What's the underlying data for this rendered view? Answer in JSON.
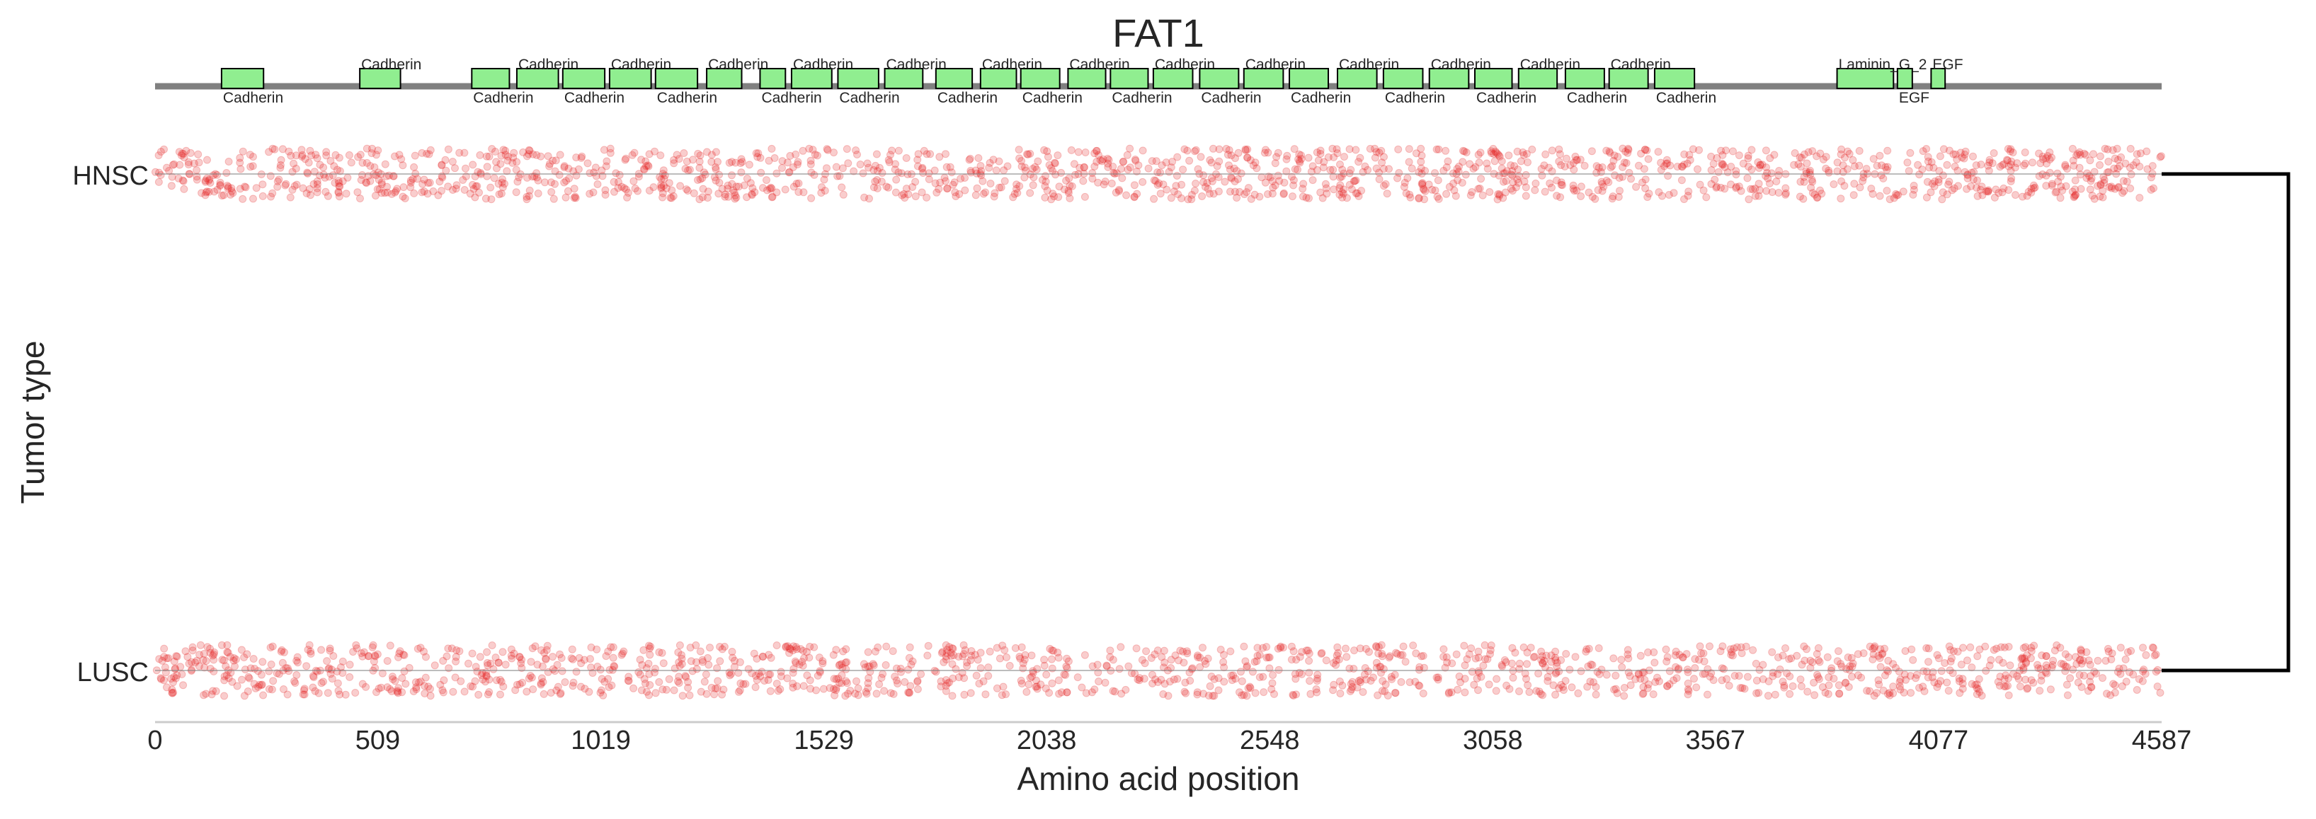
{
  "chart_data": {
    "type": "scatter",
    "title": "FAT1",
    "xlabel": "Amino acid position",
    "ylabel": "Tumor type",
    "xlim": [
      0,
      4587
    ],
    "xticks": [
      "0",
      "509",
      "1019",
      "1529",
      "2038",
      "2548",
      "3058",
      "3567",
      "4077",
      "4587"
    ],
    "categories": [
      "HNSC",
      "LUSC"
    ],
    "point_color": "#e31a1c",
    "domain_color": "#90ee90",
    "protein_line_color": "#808080",
    "domains": [
      {
        "name": "Cadherin",
        "start": 152,
        "end": 248,
        "label_pos": "below"
      },
      {
        "name": "Cadherin",
        "start": 468,
        "end": 561,
        "label_pos": "above"
      },
      {
        "name": "Cadherin",
        "start": 724,
        "end": 810,
        "label_pos": "below"
      },
      {
        "name": "Cadherin",
        "start": 827,
        "end": 922,
        "label_pos": "above"
      },
      {
        "name": "Cadherin",
        "start": 932,
        "end": 1028,
        "label_pos": "below"
      },
      {
        "name": "Cadherin",
        "start": 1039,
        "end": 1134,
        "label_pos": "above"
      },
      {
        "name": "Cadherin",
        "start": 1144,
        "end": 1240,
        "label_pos": "below"
      },
      {
        "name": "Cadherin",
        "start": 1261,
        "end": 1341,
        "label_pos": "above"
      },
      {
        "name": "Cadherin",
        "start": 1383,
        "end": 1441,
        "label_pos": "below"
      },
      {
        "name": "Cadherin",
        "start": 1455,
        "end": 1547,
        "label_pos": "above"
      },
      {
        "name": "Cadherin",
        "start": 1561,
        "end": 1654,
        "label_pos": "below"
      },
      {
        "name": "Cadherin",
        "start": 1668,
        "end": 1755,
        "label_pos": "above"
      },
      {
        "name": "Cadherin",
        "start": 1785,
        "end": 1868,
        "label_pos": "below"
      },
      {
        "name": "Cadherin",
        "start": 1887,
        "end": 1969,
        "label_pos": "above"
      },
      {
        "name": "Cadherin",
        "start": 1979,
        "end": 2068,
        "label_pos": "below"
      },
      {
        "name": "Cadherin",
        "start": 2087,
        "end": 2173,
        "label_pos": "above"
      },
      {
        "name": "Cadherin",
        "start": 2184,
        "end": 2270,
        "label_pos": "below"
      },
      {
        "name": "Cadherin",
        "start": 2282,
        "end": 2372,
        "label_pos": "above"
      },
      {
        "name": "Cadherin",
        "start": 2388,
        "end": 2477,
        "label_pos": "below"
      },
      {
        "name": "Cadherin",
        "start": 2489,
        "end": 2579,
        "label_pos": "above"
      },
      {
        "name": "Cadherin",
        "start": 2593,
        "end": 2682,
        "label_pos": "below"
      },
      {
        "name": "Cadherin",
        "start": 2703,
        "end": 2793,
        "label_pos": "above"
      },
      {
        "name": "Cadherin",
        "start": 2808,
        "end": 2898,
        "label_pos": "below"
      },
      {
        "name": "Cadherin",
        "start": 2913,
        "end": 3003,
        "label_pos": "above"
      },
      {
        "name": "Cadherin",
        "start": 3017,
        "end": 3102,
        "label_pos": "below"
      },
      {
        "name": "Cadherin",
        "start": 3117,
        "end": 3205,
        "label_pos": "above"
      },
      {
        "name": "Cadherin",
        "start": 3224,
        "end": 3313,
        "label_pos": "below"
      },
      {
        "name": "Cadherin",
        "start": 3324,
        "end": 3413,
        "label_pos": "above"
      },
      {
        "name": "Cadherin",
        "start": 3428,
        "end": 3519,
        "label_pos": "below"
      },
      {
        "name": "Laminin_G_2",
        "start": 3845,
        "end": 3974,
        "label_pos": "above"
      },
      {
        "name": "EGF",
        "start": 3983,
        "end": 4017,
        "label_pos": "below"
      },
      {
        "name": "EGF",
        "start": 4060,
        "end": 4092,
        "label_pos": "above"
      }
    ],
    "series": [
      {
        "category": "HNSC",
        "n_points": 1600,
        "y_jitter": [
          -0.05,
          0.05
        ]
      },
      {
        "category": "LUSC",
        "n_points": 1500,
        "y_jitter": [
          -0.05,
          0.05
        ]
      }
    ],
    "bracket": {
      "connects": [
        "HNSC",
        "LUSC"
      ]
    },
    "grid": false
  }
}
